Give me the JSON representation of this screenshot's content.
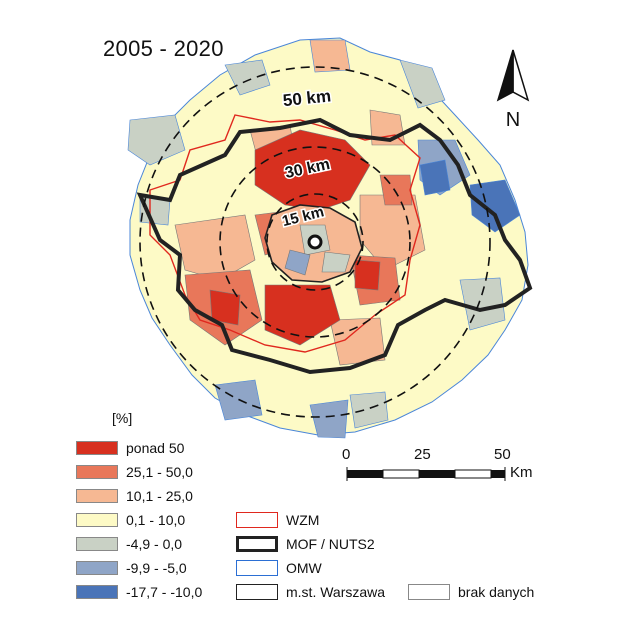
{
  "title": "2005 - 2020",
  "map": {
    "ring_labels": [
      "50 km",
      "30 km",
      "15 km"
    ]
  },
  "north_arrow": {
    "label": "N"
  },
  "scale_bar": {
    "ticks": [
      "0",
      "25",
      "50"
    ],
    "unit": "Km"
  },
  "legend": {
    "unit": "[%]",
    "classes": [
      {
        "label": "ponad 50",
        "color": "#d7301f"
      },
      {
        "label": "25,1 - 50,0",
        "color": "#e8775a"
      },
      {
        "label": "10,1 - 25,0",
        "color": "#f6b893"
      },
      {
        "label": "0,1 - 10,0",
        "color": "#fdfac6"
      },
      {
        "label": "-4,9 - 0,0",
        "color": "#c9d1c5"
      },
      {
        "label": "-9,9 - -5,0",
        "color": "#8fa5c7"
      },
      {
        "label": "-17,7 - -10,0",
        "color": "#4a74b8"
      }
    ],
    "boundaries": [
      {
        "label": "WZM",
        "color": "#e0281e"
      },
      {
        "label": "MOF / NUTS2",
        "color": "#222222"
      },
      {
        "label": "OMW",
        "color": "#2b6fd4"
      },
      {
        "label": "m.st. Warszawa",
        "color": "#222222"
      },
      {
        "label": "brak danych",
        "color": "#ffffff"
      }
    ]
  }
}
